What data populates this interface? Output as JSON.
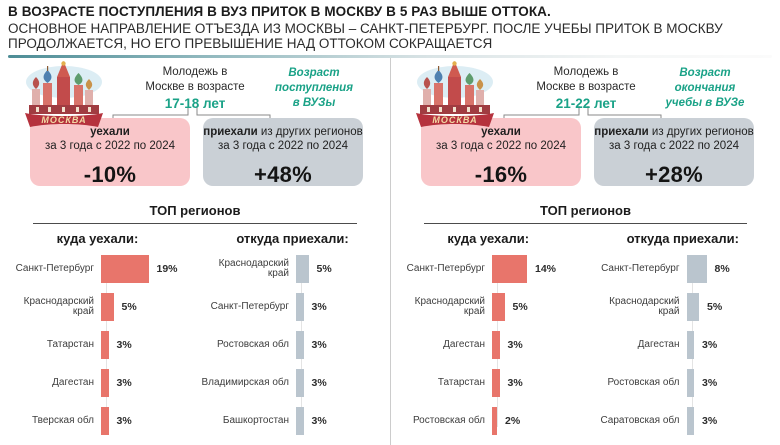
{
  "colors": {
    "teal_text": "#1aa287",
    "accent_line_start": "#4d8d96",
    "outflow_box_pink": "#f9c6c9",
    "inflow_box_gray": "#cad0d6",
    "outflow_bar_red": "#e8756b",
    "inflow_bar_gray": "#bac5ce",
    "banner_red": "#b5323d"
  },
  "header": {
    "title": "В ВОЗРАСТЕ ПОСТУПЛЕНИЯ В ВУЗ ПРИТОК В МОСКВУ В 5 РАЗ ВЫШЕ ОТТОКА.",
    "subtitle": "ОСНОВНОЕ НАПРАВЛЕНИЕ ОТЪЕЗДА ИЗ МОСКВЫ – САНКТ-ПЕТЕРБУРГ. ПОСЛЕ УЧЕБЫ ПРИТОК В МОСКВУ ПРОДОЛЖАЕТСЯ, НО ЕГО ПРЕВЫШЕНИЕ НАД ОТТОКОМ СОКРАЩАЕТСЯ"
  },
  "panels": [
    {
      "city": "МОСКВА",
      "audience": "Молодежь в\nМоскве в возрасте",
      "age": "17-18 лет",
      "age_note": "Возраст\nпоступления\nв ВУЗы",
      "out_box": {
        "title_bold": "уехали",
        "title_rest": "",
        "period": "за 3 года с 2022 по 2024",
        "value": "-10%"
      },
      "in_box": {
        "title_bold": "приехали",
        "title_rest": " из других регионов",
        "period": "за 3 года с 2022 по 2024",
        "value": "+48%"
      },
      "top_regions_title": "ТОП регионов"
    },
    {
      "city": "МОСКВА",
      "audience": "Молодежь в\nМоскве в возрасте",
      "age": "21-22 лет",
      "age_note": "Возраст\nокончания\nучебы в ВУЗе",
      "out_box": {
        "title_bold": "уехали",
        "title_rest": "",
        "period": "за 3 года с 2022 по 2024",
        "value": "-16%"
      },
      "in_box": {
        "title_bold": "приехали",
        "title_rest": " из других регионов",
        "period": "за 3 года с 2022 по 2024",
        "value": "+28%"
      },
      "top_regions_title": "ТОП регионов"
    }
  ],
  "chart_data": [
    {
      "type": "bar",
      "group": "Молодежь 17-18 лет",
      "title": "куда уехали:",
      "orientation": "horizontal",
      "unit": "%",
      "xlim": [
        0,
        20
      ],
      "bar_color": "#e8756b",
      "categories": [
        "Санкт-Петербург",
        "Краснодарский край",
        "Татарстан",
        "Дагестан",
        "Тверская обл"
      ],
      "values": [
        19,
        5,
        3,
        3,
        3
      ],
      "value_labels": [
        "19%",
        "5%",
        "3%",
        "3%",
        "3%"
      ]
    },
    {
      "type": "bar",
      "group": "Молодежь 17-18 лет",
      "title": "откуда приехали:",
      "orientation": "horizontal",
      "unit": "%",
      "xlim": [
        0,
        20
      ],
      "bar_color": "#bac5ce",
      "categories": [
        "Краснодарский край",
        "Санкт-Петербург",
        "Ростовская обл",
        "Владимирская обл",
        "Башкортостан"
      ],
      "values": [
        5,
        3,
        3,
        3,
        3
      ],
      "value_labels": [
        "5%",
        "3%",
        "3%",
        "3%",
        "3%"
      ]
    },
    {
      "type": "bar",
      "group": "Молодежь 21-22 лет",
      "title": "куда уехали:",
      "orientation": "horizontal",
      "unit": "%",
      "xlim": [
        0,
        20
      ],
      "bar_color": "#e8756b",
      "categories": [
        "Санкт-Петербург",
        "Краснодарский край",
        "Дагестан",
        "Татарстан",
        "Ростовская обл"
      ],
      "values": [
        14,
        5,
        3,
        3,
        2
      ],
      "value_labels": [
        "14%",
        "5%",
        "3%",
        "3%",
        "2%"
      ]
    },
    {
      "type": "bar",
      "group": "Молодежь 21-22 лет",
      "title": "откуда приехали:",
      "orientation": "horizontal",
      "unit": "%",
      "xlim": [
        0,
        20
      ],
      "bar_color": "#bac5ce",
      "categories": [
        "Санкт-Петербург",
        "Краснодарский край",
        "Дагестан",
        "Ростовская обл",
        "Саратовская обл"
      ],
      "values": [
        8,
        5,
        3,
        3,
        3
      ],
      "value_labels": [
        "8%",
        "5%",
        "3%",
        "3%",
        "3%"
      ]
    }
  ]
}
